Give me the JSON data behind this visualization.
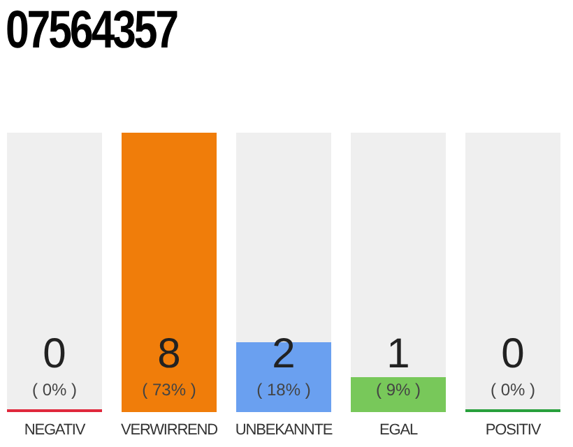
{
  "chart_data": {
    "type": "bar",
    "title": "07564357",
    "categories": [
      "NEGATIV",
      "VERWIRREND",
      "UNBEKANNTE",
      "EGAL",
      "POSITIV"
    ],
    "values": [
      0,
      8,
      2,
      1,
      0
    ],
    "colors": [
      "#e0283c",
      "#f07d0a",
      "#6aa0f0",
      "#78c85a",
      "#28a03c"
    ],
    "value_labels": [
      "0 ( 0% )",
      "8 ( 73% )",
      "2 ( 18% )",
      "1 ( 9% )",
      "0 ( 0% )"
    ]
  }
}
